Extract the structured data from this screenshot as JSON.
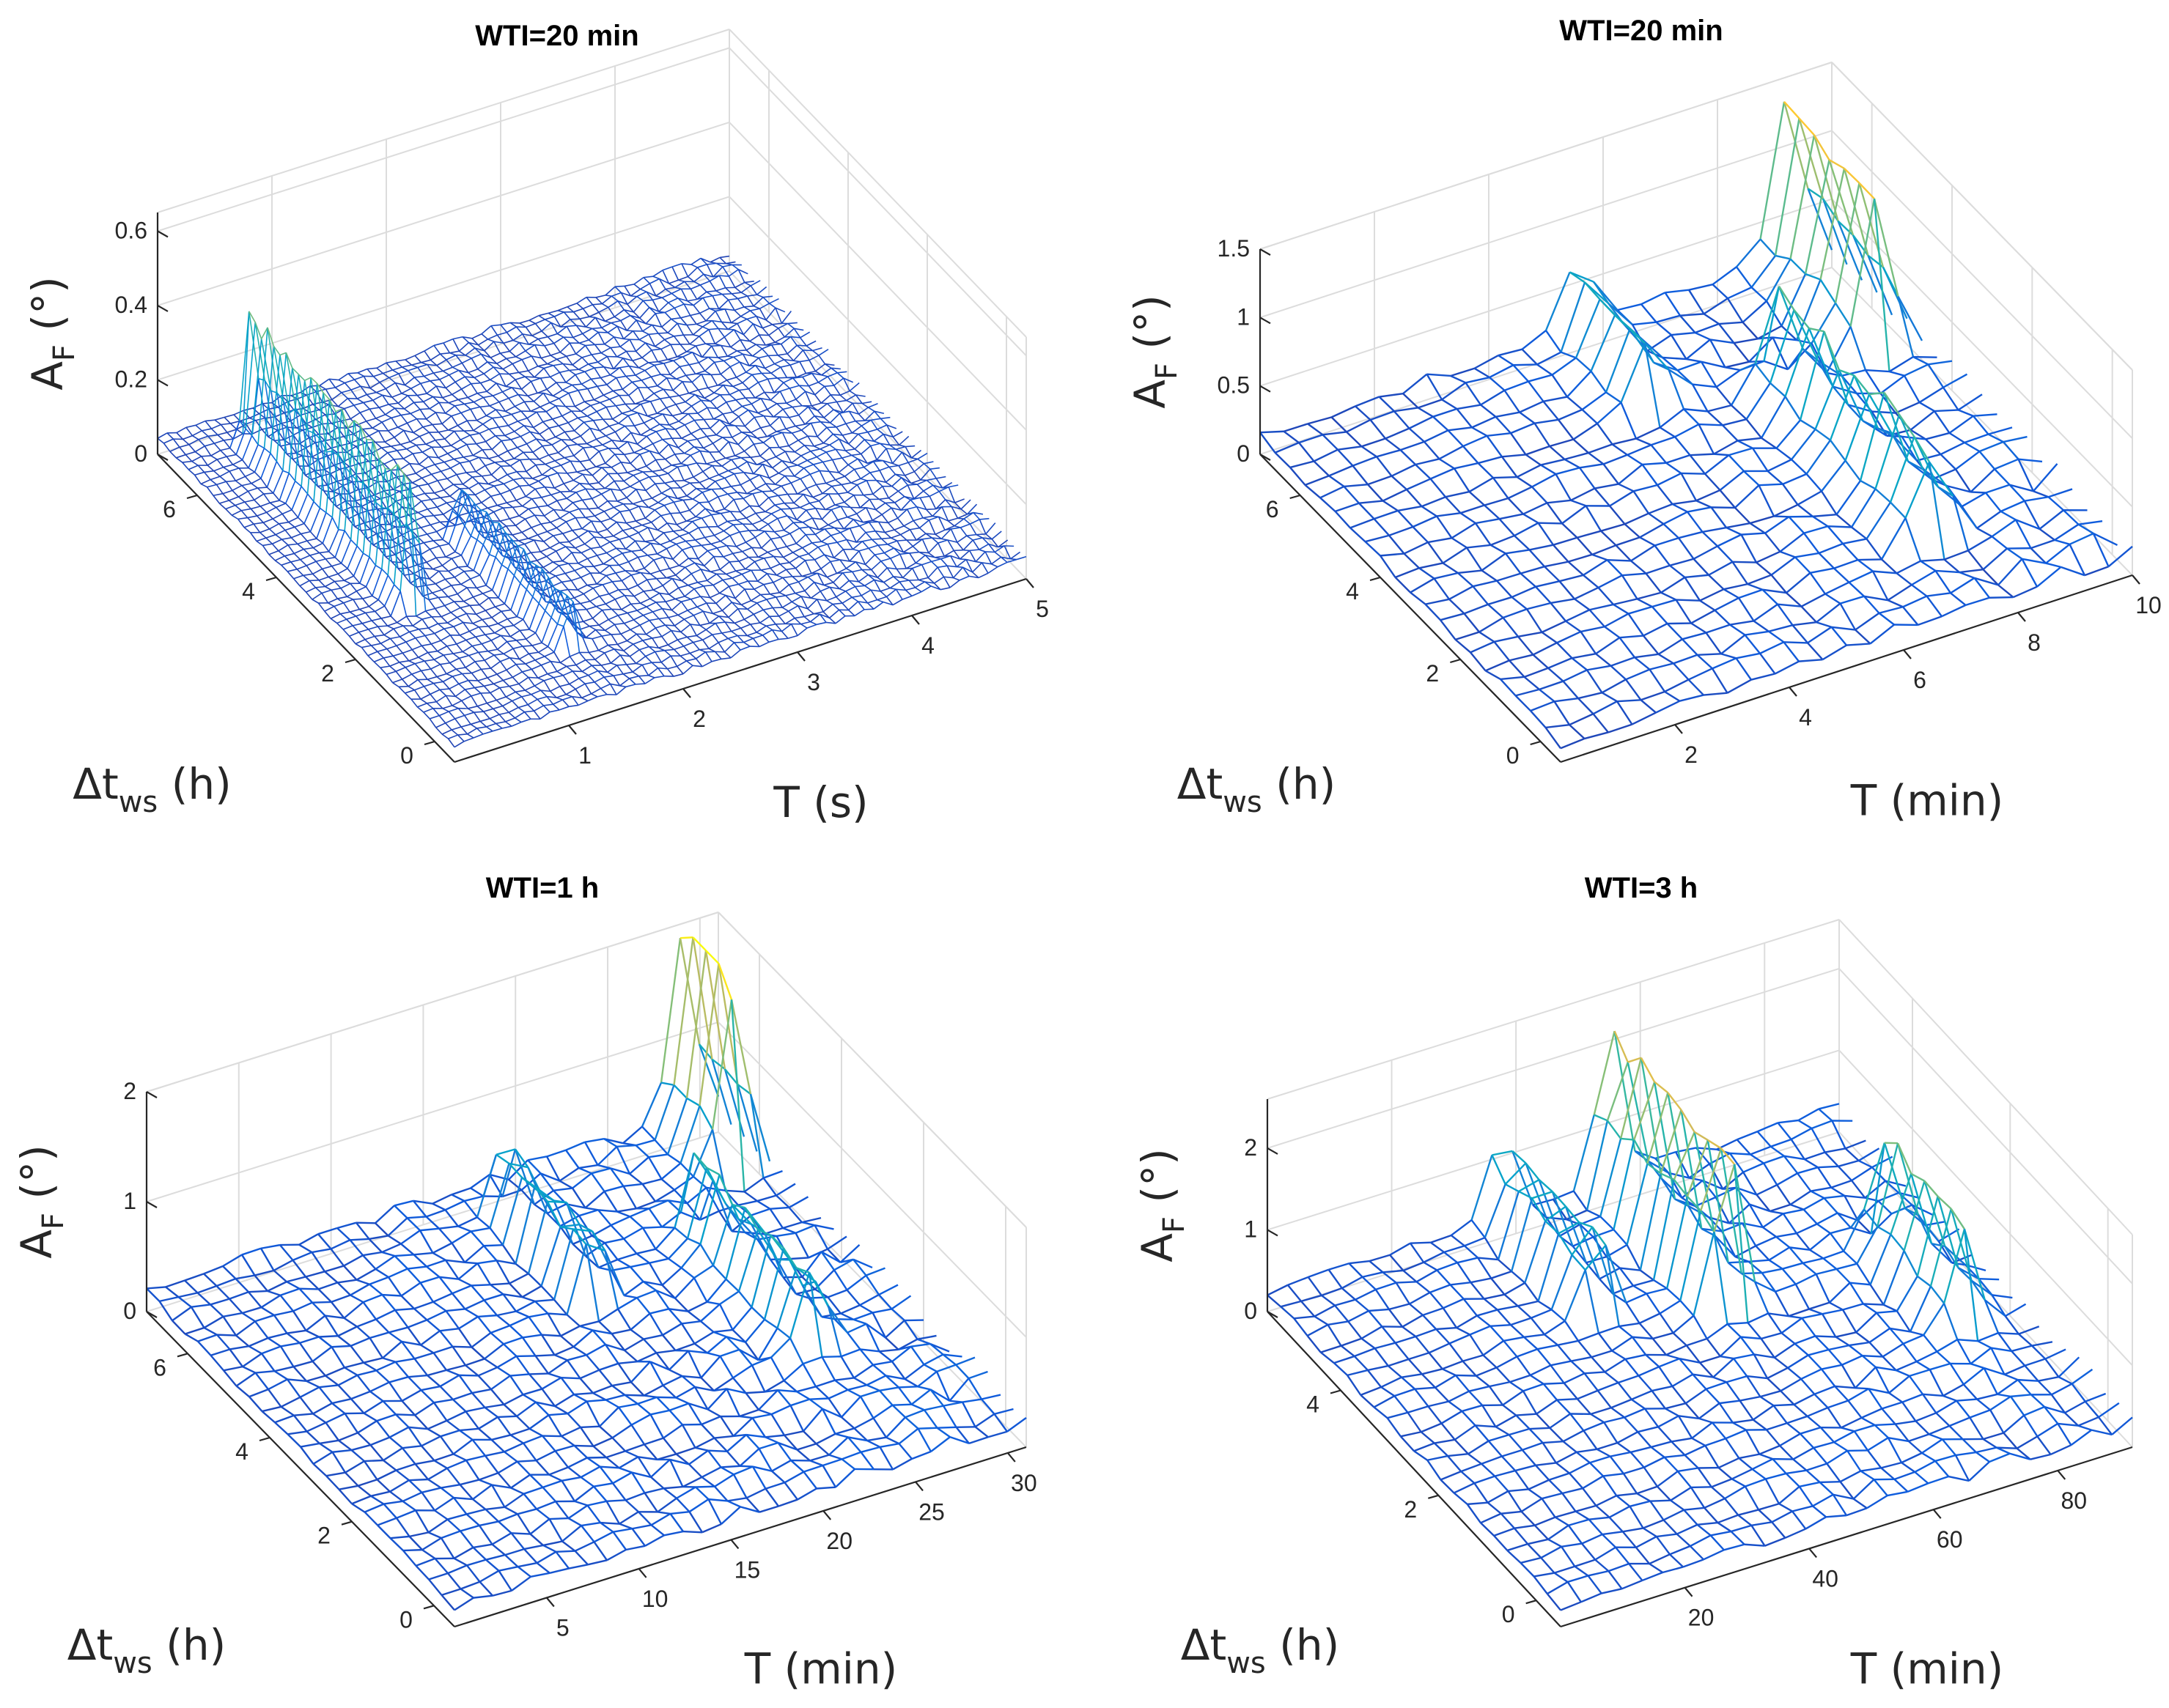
{
  "chart_data": [
    {
      "type": "surface",
      "title": "WTI=20 min",
      "xlabel": "T (s)",
      "ylabel": "Δt_ws (h)",
      "zlabel": "A_F (°)",
      "x_ticks": [
        "1",
        "2",
        "3",
        "4",
        "5"
      ],
      "y_ticks": [
        "0",
        "2",
        "4",
        "6"
      ],
      "z_ticks": [
        "0",
        "0.2",
        "0.4",
        "0.6"
      ],
      "xlim": [
        0,
        5
      ],
      "ylim": [
        -0.5,
        7
      ],
      "zlim": [
        0,
        0.65
      ],
      "grid": true,
      "colormap": [
        "#352a87",
        "#0f5cdd",
        "#1481d6",
        "#06a4ca",
        "#2eb7a4",
        "#87bf77",
        "#d1bb59",
        "#fec832",
        "#f9fb0e"
      ],
      "shape": {
        "baseline": 0.04,
        "noise": 0.02,
        "rows": 48,
        "cols": 60,
        "ridges": [
          {
            "x": 0.6,
            "ymin": 2.2,
            "ymax": 6.5,
            "height": 0.42
          },
          {
            "x": 1.4,
            "ymin": 0.5,
            "ymax": 3.5,
            "height": 0.15
          }
        ]
      }
    },
    {
      "type": "surface",
      "title": "WTI=20 min",
      "xlabel": "T (min)",
      "ylabel": "Δt_ws (h)",
      "zlabel": "A_F (°)",
      "x_ticks": [
        "2",
        "4",
        "6",
        "8",
        "10"
      ],
      "y_ticks": [
        "0",
        "2",
        "4",
        "6"
      ],
      "z_ticks": [
        "0",
        "0.5",
        "1",
        "1.5"
      ],
      "xlim": [
        0,
        10
      ],
      "ylim": [
        -0.5,
        7
      ],
      "zlim": [
        0,
        1.5
      ],
      "grid": true,
      "colormap": [
        "#352a87",
        "#0f5cdd",
        "#1481d6",
        "#06a4ca",
        "#2eb7a4",
        "#87bf77",
        "#d1bb59",
        "#fec832",
        "#f9fb0e"
      ],
      "shape": {
        "baseline": 0.1,
        "noise": 0.12,
        "rows": 20,
        "cols": 24,
        "ridges": [
          {
            "x": 9.2,
            "ymin": 4.5,
            "ymax": 7,
            "height": 1.3
          },
          {
            "x": 7.5,
            "ymin": 1.0,
            "ymax": 5.0,
            "height": 0.7
          },
          {
            "x": 5.5,
            "ymin": 5.0,
            "ymax": 7,
            "height": 0.6
          }
        ]
      }
    },
    {
      "type": "surface",
      "title": "WTI=1 h",
      "xlabel": "T (min)",
      "ylabel": "Δt_ws (h)",
      "zlabel": "A_F (°)",
      "x_ticks": [
        "5",
        "10",
        "15",
        "20",
        "25",
        "30"
      ],
      "y_ticks": [
        "0",
        "2",
        "4",
        "6"
      ],
      "z_ticks": [
        "0",
        "1",
        "2"
      ],
      "xlim": [
        0,
        31
      ],
      "ylim": [
        -0.5,
        7
      ],
      "zlim": [
        0,
        2
      ],
      "grid": true,
      "colormap": [
        "#352a87",
        "#0f5cdd",
        "#1481d6",
        "#06a4ca",
        "#2eb7a4",
        "#87bf77",
        "#d1bb59",
        "#fec832",
        "#f9fb0e"
      ],
      "shape": {
        "baseline": 0.15,
        "noise": 0.15,
        "rows": 24,
        "cols": 30,
        "ridges": [
          {
            "x": 29,
            "ymin": 5.5,
            "ymax": 7,
            "height": 1.9
          },
          {
            "x": 25,
            "ymin": 2.0,
            "ymax": 5.0,
            "height": 0.9
          },
          {
            "x": 18,
            "ymin": 4.0,
            "ymax": 6.5,
            "height": 0.8
          }
        ]
      }
    },
    {
      "type": "surface",
      "title": "WTI=3 h",
      "xlabel": "T (min)",
      "ylabel": "Δt_ws (h)",
      "zlabel": "A_F (°)",
      "x_ticks": [
        "20",
        "40",
        "60",
        "80"
      ],
      "y_ticks": [
        "0",
        "2",
        "4"
      ],
      "z_ticks": [
        "0",
        "1",
        "2"
      ],
      "xlim": [
        0,
        92
      ],
      "ylim": [
        -0.5,
        5.5
      ],
      "zlim": [
        0,
        2.6
      ],
      "grid": true,
      "colormap": [
        "#352a87",
        "#0f5cdd",
        "#1481d6",
        "#06a4ca",
        "#2eb7a4",
        "#87bf77",
        "#d1bb59",
        "#fec832",
        "#f9fb0e"
      ],
      "shape": {
        "baseline": 0.2,
        "noise": 0.18,
        "rows": 22,
        "cols": 28,
        "ridges": [
          {
            "x": 55,
            "ymin": 3.0,
            "ymax": 5.5,
            "height": 2.3
          },
          {
            "x": 82,
            "ymin": 1.5,
            "ymax": 3.5,
            "height": 1.4
          },
          {
            "x": 38,
            "ymin": 3.5,
            "ymax": 5.5,
            "height": 1.2
          }
        ]
      }
    }
  ]
}
